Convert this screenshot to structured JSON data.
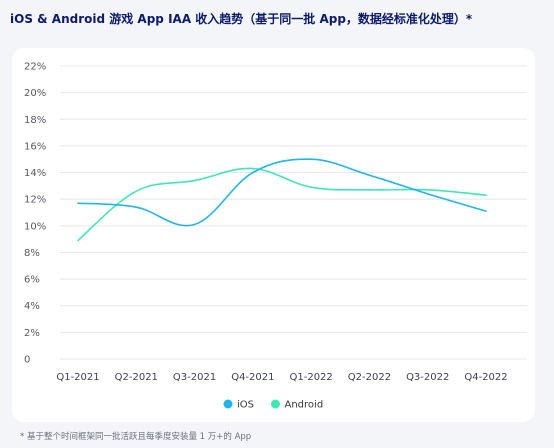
{
  "title": "iOS & Android 游戏 App IAA 收入趋势（基于同一批 App，数据经标准化处理）*",
  "footnote": "* 基于整个时间框架同一批活跃且每季度安装量 1 万+的 App",
  "colors": {
    "ios": "#1fb6ea",
    "android": "#3de8b6",
    "grid": "#e6e8ee",
    "title": "#0c1b6b"
  },
  "chart_data": {
    "type": "line",
    "categories": [
      "Q1-2021",
      "Q2-2021",
      "Q3-2021",
      "Q4-2021",
      "Q1-2022",
      "Q2-2022",
      "Q3-2022",
      "Q4-2022"
    ],
    "y_ticks": [
      "0",
      "2%",
      "4%",
      "6%",
      "8%",
      "10%",
      "12%",
      "14%",
      "16%",
      "18%",
      "20%",
      "22%"
    ],
    "ylim": [
      0,
      22
    ],
    "series": [
      {
        "name": "iOS",
        "color": "#1fb6ea",
        "values": [
          11.7,
          11.4,
          10.1,
          14.0,
          15.0,
          13.8,
          12.4,
          11.1
        ]
      },
      {
        "name": "Android",
        "color": "#3de8b6",
        "values": [
          8.9,
          12.6,
          13.4,
          14.3,
          12.9,
          12.7,
          12.7,
          12.3
        ]
      }
    ],
    "legend_position": "bottom-center",
    "grid": true
  }
}
